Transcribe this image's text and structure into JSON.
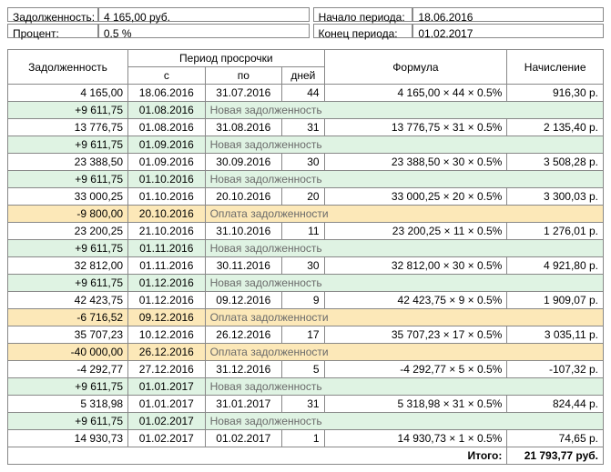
{
  "info": {
    "debt_label": "Задолженность:",
    "debt_value": "4 165,00 руб.",
    "percent_label": "Процент:",
    "percent_value": "0.5 %",
    "period_start_label": "Начало периода:",
    "period_start_value": "18.06.2016",
    "period_end_label": "Конец периода:",
    "period_end_value": "01.02.2017"
  },
  "headers": {
    "debt": "Задолженность",
    "period": "Период просрочки",
    "from": "с",
    "to": "по",
    "days": "дней",
    "formula": "Формула",
    "acc": "Начисление"
  },
  "rows": [
    {
      "type": "calc",
      "debt": "4 165,00",
      "from": "18.06.2016",
      "to": "31.07.2016",
      "days": "44",
      "formula": "4 165,00 × 44 × 0.5%",
      "acc": "916,30 р."
    },
    {
      "type": "new",
      "debt": "+9 611,75",
      "from": "01.08.2016",
      "note": "Новая задолженность"
    },
    {
      "type": "calc",
      "debt": "13 776,75",
      "from": "01.08.2016",
      "to": "31.08.2016",
      "days": "31",
      "formula": "13 776,75 × 31 × 0.5%",
      "acc": "2 135,40 р."
    },
    {
      "type": "new",
      "debt": "+9 611,75",
      "from": "01.09.2016",
      "note": "Новая задолженность"
    },
    {
      "type": "calc",
      "debt": "23 388,50",
      "from": "01.09.2016",
      "to": "30.09.2016",
      "days": "30",
      "formula": "23 388,50 × 30 × 0.5%",
      "acc": "3 508,28 р."
    },
    {
      "type": "new",
      "debt": "+9 611,75",
      "from": "01.10.2016",
      "note": "Новая задолженность"
    },
    {
      "type": "calc",
      "debt": "33 000,25",
      "from": "01.10.2016",
      "to": "20.10.2016",
      "days": "20",
      "formula": "33 000,25 × 20 × 0.5%",
      "acc": "3 300,03 р."
    },
    {
      "type": "pay",
      "debt": "-9 800,00",
      "from": "20.10.2016",
      "note": "Оплата задолженности"
    },
    {
      "type": "calc",
      "debt": "23 200,25",
      "from": "21.10.2016",
      "to": "31.10.2016",
      "days": "11",
      "formula": "23 200,25 × 11 × 0.5%",
      "acc": "1 276,01 р."
    },
    {
      "type": "new",
      "debt": "+9 611,75",
      "from": "01.11.2016",
      "note": "Новая задолженность"
    },
    {
      "type": "calc",
      "debt": "32 812,00",
      "from": "01.11.2016",
      "to": "30.11.2016",
      "days": "30",
      "formula": "32 812,00 × 30 × 0.5%",
      "acc": "4 921,80 р."
    },
    {
      "type": "new",
      "debt": "+9 611,75",
      "from": "01.12.2016",
      "note": "Новая задолженность"
    },
    {
      "type": "calc",
      "debt": "42 423,75",
      "from": "01.12.2016",
      "to": "09.12.2016",
      "days": "9",
      "formula": "42 423,75 × 9 × 0.5%",
      "acc": "1 909,07 р."
    },
    {
      "type": "pay",
      "debt": "-6 716,52",
      "from": "09.12.2016",
      "note": "Оплата задолженности"
    },
    {
      "type": "calc",
      "debt": "35 707,23",
      "from": "10.12.2016",
      "to": "26.12.2016",
      "days": "17",
      "formula": "35 707,23 × 17 × 0.5%",
      "acc": "3 035,11 р."
    },
    {
      "type": "pay",
      "debt": "-40 000,00",
      "from": "26.12.2016",
      "note": "Оплата задолженности"
    },
    {
      "type": "calc",
      "debt": "-4 292,77",
      "from": "27.12.2016",
      "to": "31.12.2016",
      "days": "5",
      "formula": "-4 292,77 × 5 × 0.5%",
      "acc": "-107,32 р."
    },
    {
      "type": "new",
      "debt": "+9 611,75",
      "from": "01.01.2017",
      "note": "Новая задолженность"
    },
    {
      "type": "calc",
      "debt": "5 318,98",
      "from": "01.01.2017",
      "to": "31.01.2017",
      "days": "31",
      "formula": "5 318,98 × 31 × 0.5%",
      "acc": "824,44 р."
    },
    {
      "type": "new",
      "debt": "+9 611,75",
      "from": "01.02.2017",
      "note": "Новая задолженность"
    },
    {
      "type": "calc",
      "debt": "14 930,73",
      "from": "01.02.2017",
      "to": "01.02.2017",
      "days": "1",
      "formula": "14 930,73 × 1 × 0.5%",
      "acc": "74,65 р."
    }
  ],
  "total": {
    "label": "Итого:",
    "value": "21 793,77 руб."
  }
}
